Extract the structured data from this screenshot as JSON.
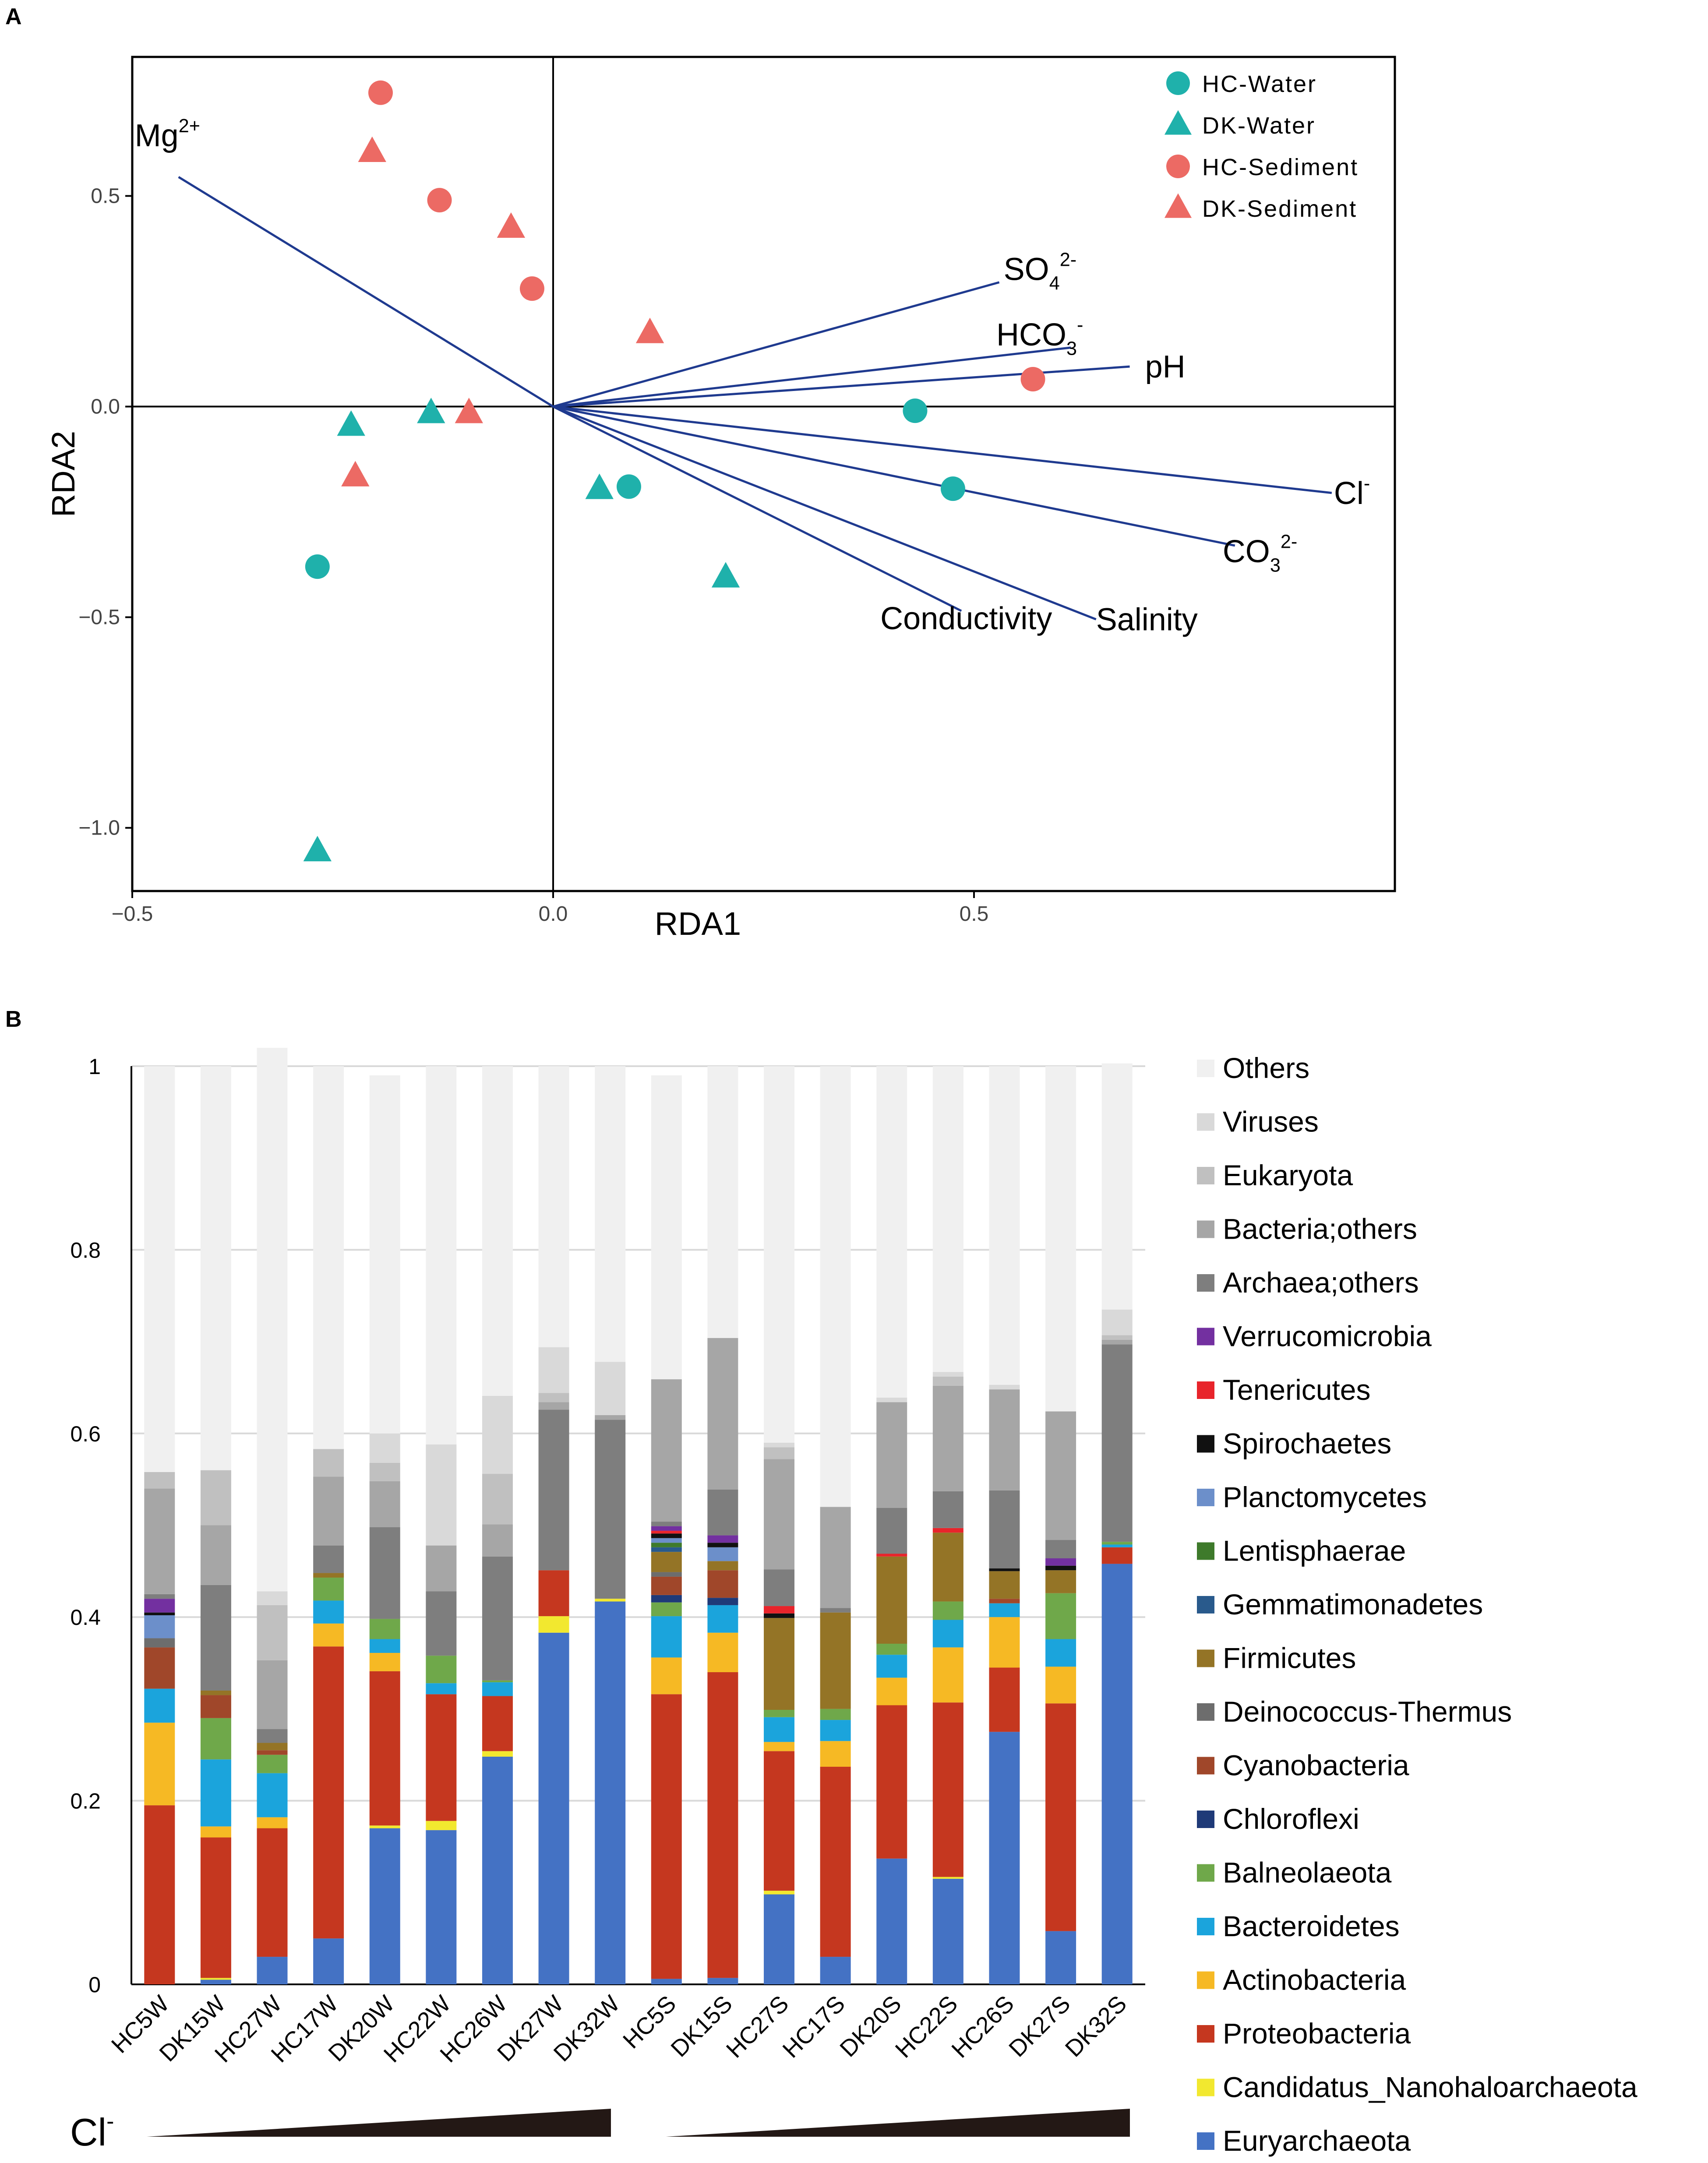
{
  "chart_data": [
    {
      "panel": "A",
      "type": "scatter",
      "xlabel": "RDA1",
      "ylabel": "RDA2",
      "xlim": [
        -0.5,
        1.0
      ],
      "ylim": [
        -1.15,
        0.83
      ],
      "xticks": [
        {
          "v": -0.5,
          "t": "−0.5"
        },
        {
          "v": 0.0,
          "t": "0.0"
        },
        {
          "v": 0.5,
          "t": "0.5"
        }
      ],
      "yticks": [
        {
          "v": 0.5,
          "t": "0.5"
        },
        {
          "v": 0.0,
          "t": "0.0"
        },
        {
          "v": -0.5,
          "t": "−0.5"
        },
        {
          "v": -1.0,
          "t": "−1.0"
        }
      ],
      "legend": [
        {
          "label": "HC-Water",
          "shape": "circle",
          "color": "#1fb1ab"
        },
        {
          "label": "DK-Water",
          "shape": "triangle",
          "color": "#1fb1ab"
        },
        {
          "label": "HC-Sediment",
          "shape": "circle",
          "color": "#ec6a64"
        },
        {
          "label": "DK-Sediment",
          "shape": "triangle",
          "color": "#ec6a64"
        }
      ],
      "series": [
        {
          "name": "HC-Water",
          "points": [
            [
              0.43,
              -0.01
            ],
            [
              0.475,
              -0.195
            ],
            [
              0.09,
              -0.19
            ],
            [
              -0.28,
              -0.38
            ]
          ]
        },
        {
          "name": "DK-Water",
          "points": [
            [
              0.055,
              -0.195
            ],
            [
              0.205,
              -0.405
            ],
            [
              -0.145,
              -0.015
            ],
            [
              -0.24,
              -0.045
            ],
            [
              -0.28,
              -1.055
            ]
          ]
        },
        {
          "name": "HC-Sediment",
          "points": [
            [
              -0.205,
              0.745
            ],
            [
              -0.135,
              0.49
            ],
            [
              -0.025,
              0.28
            ],
            [
              0.57,
              0.065
            ]
          ]
        },
        {
          "name": "DK-Sediment",
          "points": [
            [
              -0.215,
              0.605
            ],
            [
              -0.05,
              0.425
            ],
            [
              0.115,
              0.175
            ],
            [
              -0.1,
              -0.015
            ],
            [
              -0.235,
              -0.165
            ]
          ]
        }
      ],
      "vectors": [
        {
          "label": "Mg",
          "sup": "2+",
          "sub": "",
          "x": -0.445,
          "y": 0.545
        },
        {
          "label": "SO",
          "sub": "4",
          "sup": "2-",
          "x": 0.53,
          "y": 0.295
        },
        {
          "label": "HCO",
          "sub": "3",
          "sup": "-",
          "x": 0.615,
          "y": 0.14
        },
        {
          "label": "pH",
          "sub": "",
          "sup": "",
          "x": 0.685,
          "y": 0.095
        },
        {
          "label": "Cl",
          "sub": "",
          "sup": "-",
          "x": 0.925,
          "y": -0.205
        },
        {
          "label": "CO",
          "sub": "3",
          "sup": "2-",
          "x": 0.81,
          "y": -0.33
        },
        {
          "label": "Salinity",
          "sub": "",
          "sup": "",
          "x": 0.645,
          "y": -0.505
        },
        {
          "label": "Conductivity",
          "sub": "",
          "sup": "",
          "x": 0.485,
          "y": -0.485
        }
      ],
      "vector_color": "#1f3a8f"
    },
    {
      "panel": "B",
      "type": "bar",
      "stacked": true,
      "ylim": [
        0,
        1
      ],
      "yticks": [
        "0",
        "0.2",
        "0.4",
        "0.6",
        "0.8",
        "1"
      ],
      "categories": [
        "HC5W",
        "DK15W",
        "HC27W",
        "HC17W",
        "DK20W",
        "HC22W",
        "HC26W",
        "DK27W",
        "DK32W",
        "HC5S",
        "DK15S",
        "HC27S",
        "HC17S",
        "DK20S",
        "HC22S",
        "HC26S",
        "DK27S",
        "DK32S"
      ],
      "gradient_label": {
        "text": "Cl",
        "sup": "-"
      },
      "series": [
        {
          "name": "Euryarchaeota",
          "color": "#4472c4",
          "values": [
            0.0,
            0.005,
            0.03,
            0.05,
            0.17,
            0.168,
            0.248,
            0.383,
            0.417,
            0.006,
            0.007,
            0.098,
            0.03,
            0.137,
            0.115,
            0.275,
            0.058,
            0.458
          ]
        },
        {
          "name": "Candidatus_Nanohaloarchaeota",
          "color": "#f2e82f",
          "values": [
            0.0,
            0.002,
            0.0,
            0.0,
            0.003,
            0.01,
            0.006,
            0.018,
            0.003,
            0.0,
            0.0,
            0.004,
            0.0,
            0.0,
            0.002,
            0.0,
            0.0,
            0.0
          ]
        },
        {
          "name": "Proteobacteria",
          "color": "#c5371f",
          "values": [
            0.195,
            0.153,
            0.14,
            0.318,
            0.168,
            0.138,
            0.06,
            0.05,
            0.0,
            0.31,
            0.333,
            0.152,
            0.207,
            0.167,
            0.19,
            0.07,
            0.248,
            0.018
          ]
        },
        {
          "name": "Actinobacteria",
          "color": "#f6b924",
          "values": [
            0.09,
            0.012,
            0.012,
            0.025,
            0.02,
            0.0,
            0.0,
            0.0,
            0.0,
            0.04,
            0.043,
            0.01,
            0.028,
            0.03,
            0.06,
            0.055,
            0.04,
            0.0
          ]
        },
        {
          "name": "Bacteroidetes",
          "color": "#1ba4dc",
          "values": [
            0.037,
            0.073,
            0.048,
            0.025,
            0.015,
            0.012,
            0.015,
            0.0,
            0.0,
            0.045,
            0.03,
            0.027,
            0.023,
            0.025,
            0.03,
            0.015,
            0.03,
            0.003
          ]
        },
        {
          "name": "Balneolaeota",
          "color": "#6fa84a",
          "values": [
            0.0,
            0.045,
            0.02,
            0.025,
            0.022,
            0.03,
            0.002,
            0.0,
            0.0,
            0.015,
            0.0,
            0.008,
            0.012,
            0.012,
            0.02,
            0.0,
            0.05,
            0.003
          ]
        },
        {
          "name": "Chloroflexi",
          "color": "#1f3a78",
          "values": [
            0.0,
            0.0,
            0.0,
            0.0,
            0.0,
            0.0,
            0.0,
            0.0,
            0.0,
            0.008,
            0.008,
            0.0,
            0.0,
            0.0,
            0.0,
            0.0,
            0.0,
            0.0
          ]
        },
        {
          "name": "Cyanobacteria",
          "color": "#a0472a",
          "values": [
            0.045,
            0.025,
            0.005,
            0.0,
            0.0,
            0.0,
            0.0,
            0.0,
            0.0,
            0.02,
            0.03,
            0.0,
            0.0,
            0.0,
            0.0,
            0.005,
            0.0,
            0.0
          ]
        },
        {
          "name": "Deinococcus-Thermus",
          "color": "#6d6d6d",
          "values": [
            0.01,
            0.0,
            0.0,
            0.0,
            0.0,
            0.0,
            0.0,
            0.0,
            0.0,
            0.005,
            0.0,
            0.0,
            0.0,
            0.0,
            0.0,
            0.0,
            0.0,
            0.0
          ]
        },
        {
          "name": "Firmicutes",
          "color": "#947426",
          "values": [
            0.0,
            0.005,
            0.008,
            0.005,
            0.0,
            0.0,
            0.0,
            0.0,
            0.0,
            0.022,
            0.01,
            0.1,
            0.105,
            0.095,
            0.075,
            0.03,
            0.025,
            0.0
          ]
        },
        {
          "name": "Gemmatimonadetes",
          "color": "#295a8c",
          "values": [
            0.0,
            0.0,
            0.0,
            0.0,
            0.0,
            0.0,
            0.0,
            0.0,
            0.0,
            0.005,
            0.0,
            0.0,
            0.0,
            0.0,
            0.0,
            0.0,
            0.0,
            0.0
          ]
        },
        {
          "name": "Lentisphaerae",
          "color": "#3e7a2b",
          "values": [
            0.0,
            0.0,
            0.0,
            0.0,
            0.0,
            0.0,
            0.0,
            0.0,
            0.0,
            0.005,
            0.0,
            0.0,
            0.0,
            0.0,
            0.0,
            0.0,
            0.0,
            0.0
          ]
        },
        {
          "name": "Planctomycetes",
          "color": "#6c8fca",
          "values": [
            0.025,
            0.0,
            0.0,
            0.0,
            0.0,
            0.0,
            0.0,
            0.0,
            0.0,
            0.005,
            0.015,
            0.0,
            0.0,
            0.0,
            0.0,
            0.0,
            0.0,
            0.0
          ]
        },
        {
          "name": "Spirochaetes",
          "color": "#111111",
          "values": [
            0.003,
            0.0,
            0.0,
            0.0,
            0.0,
            0.0,
            0.0,
            0.0,
            0.0,
            0.005,
            0.005,
            0.005,
            0.0,
            0.0,
            0.0,
            0.003,
            0.005,
            0.0
          ]
        },
        {
          "name": "Tenericutes",
          "color": "#e8242b",
          "values": [
            0.0,
            0.0,
            0.0,
            0.0,
            0.0,
            0.0,
            0.0,
            0.0,
            0.0,
            0.003,
            0.0,
            0.008,
            0.0,
            0.003,
            0.005,
            0.0,
            0.0,
            0.0
          ]
        },
        {
          "name": "Verrucomicrobia",
          "color": "#7330a0",
          "values": [
            0.015,
            0.0,
            0.0,
            0.0,
            0.0,
            0.0,
            0.0,
            0.0,
            0.0,
            0.005,
            0.008,
            0.0,
            0.0,
            0.0,
            0.0,
            0.0,
            0.008,
            0.0
          ]
        },
        {
          "name": "Archaea;others",
          "color": "#7e7e7e",
          "values": [
            0.005,
            0.115,
            0.015,
            0.03,
            0.1,
            0.07,
            0.135,
            0.175,
            0.195,
            0.005,
            0.05,
            0.04,
            0.005,
            0.05,
            0.04,
            0.085,
            0.02,
            0.215
          ]
        },
        {
          "name": "Bacteria;others",
          "color": "#a6a6a6",
          "values": [
            0.115,
            0.065,
            0.075,
            0.075,
            0.05,
            0.05,
            0.035,
            0.008,
            0.005,
            0.155,
            0.165,
            0.12,
            0.11,
            0.115,
            0.115,
            0.11,
            0.14,
            0.005
          ]
        },
        {
          "name": "Eukaryota",
          "color": "#c0c0c0",
          "values": [
            0.018,
            0.06,
            0.06,
            0.03,
            0.02,
            0.0,
            0.055,
            0.01,
            0.0,
            0.0,
            0.0,
            0.013,
            0.0,
            0.0,
            0.01,
            0.0,
            0.0,
            0.005
          ]
        },
        {
          "name": "Viruses",
          "color": "#d9d9d9",
          "values": [
            0.0,
            0.0,
            0.015,
            0.0,
            0.032,
            0.11,
            0.085,
            0.05,
            0.058,
            0.0,
            0.0,
            0.005,
            0.0,
            0.005,
            0.005,
            0.005,
            0.0,
            0.028
          ]
        },
        {
          "name": "Others",
          "color": "#f0f0f0",
          "values": [
            0.442,
            0.44,
            0.592,
            0.417,
            0.39,
            0.412,
            0.359,
            0.306,
            0.322,
            0.331,
            0.296,
            0.41,
            0.48,
            0.361,
            0.333,
            0.347,
            0.376,
            0.268
          ]
        }
      ]
    }
  ],
  "panel_labels": {
    "a": "A",
    "b": "B"
  }
}
